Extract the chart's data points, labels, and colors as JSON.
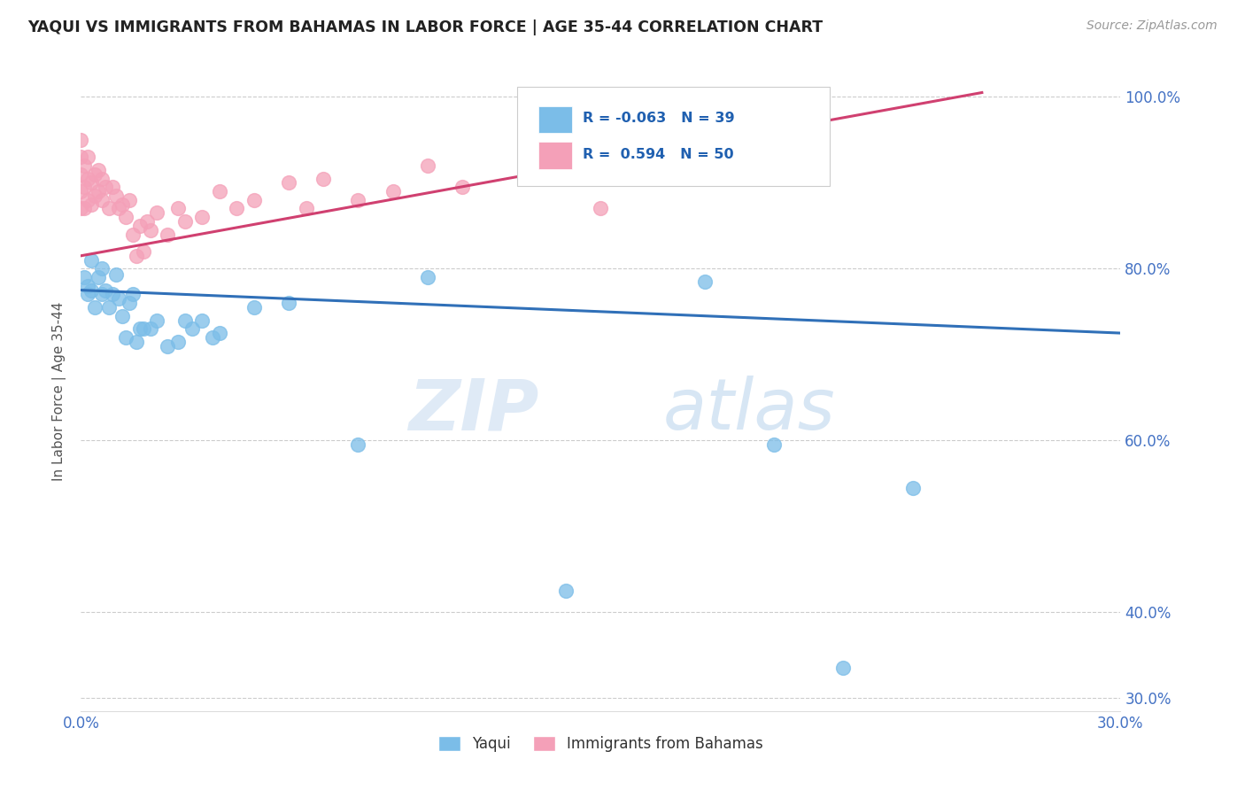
{
  "title": "YAQUI VS IMMIGRANTS FROM BAHAMAS IN LABOR FORCE | AGE 35-44 CORRELATION CHART",
  "source_text": "Source: ZipAtlas.com",
  "ylabel": "In Labor Force | Age 35-44",
  "xlim": [
    0.0,
    0.3
  ],
  "ylim": [
    0.285,
    1.03
  ],
  "ytick_labels": [
    "30.0%",
    "40.0%",
    "60.0%",
    "80.0%",
    "100.0%"
  ],
  "ytick_values": [
    0.3,
    0.4,
    0.6,
    0.8,
    1.0
  ],
  "xtick_labels": [
    "0.0%",
    "",
    "",
    "30.0%"
  ],
  "xtick_values": [
    0.0,
    0.1,
    0.2,
    0.3
  ],
  "blue_R": -0.063,
  "blue_N": 39,
  "pink_R": 0.594,
  "pink_N": 50,
  "blue_color": "#7bbde8",
  "pink_color": "#f4a0b8",
  "trend_blue_color": "#3070b8",
  "trend_pink_color": "#d04070",
  "legend_blue_label": "Yaqui",
  "legend_pink_label": "Immigrants from Bahamas",
  "watermark_zip": "ZIP",
  "watermark_atlas": "atlas",
  "background_color": "#ffffff",
  "grid_color": "#cccccc",
  "blue_x": [
    0.001,
    0.002,
    0.002,
    0.003,
    0.003,
    0.004,
    0.005,
    0.006,
    0.006,
    0.007,
    0.008,
    0.009,
    0.01,
    0.011,
    0.012,
    0.013,
    0.014,
    0.015,
    0.016,
    0.017,
    0.018,
    0.02,
    0.022,
    0.025,
    0.028,
    0.03,
    0.032,
    0.035,
    0.038,
    0.04,
    0.05,
    0.06,
    0.08,
    0.1,
    0.14,
    0.18,
    0.2,
    0.22,
    0.24
  ],
  "blue_y": [
    0.79,
    0.78,
    0.77,
    0.81,
    0.775,
    0.755,
    0.79,
    0.8,
    0.77,
    0.775,
    0.755,
    0.77,
    0.793,
    0.765,
    0.745,
    0.72,
    0.76,
    0.77,
    0.715,
    0.73,
    0.73,
    0.73,
    0.74,
    0.71,
    0.715,
    0.74,
    0.73,
    0.74,
    0.72,
    0.725,
    0.755,
    0.76,
    0.595,
    0.79,
    0.425,
    0.785,
    0.595,
    0.335,
    0.545
  ],
  "pink_x": [
    0.0,
    0.0,
    0.0,
    0.0,
    0.0,
    0.001,
    0.001,
    0.001,
    0.002,
    0.002,
    0.002,
    0.003,
    0.003,
    0.004,
    0.004,
    0.005,
    0.005,
    0.006,
    0.006,
    0.007,
    0.008,
    0.009,
    0.01,
    0.011,
    0.012,
    0.013,
    0.014,
    0.015,
    0.016,
    0.017,
    0.018,
    0.019,
    0.02,
    0.022,
    0.025,
    0.028,
    0.03,
    0.035,
    0.04,
    0.045,
    0.05,
    0.06,
    0.065,
    0.07,
    0.08,
    0.09,
    0.1,
    0.11,
    0.13,
    0.15
  ],
  "pink_y": [
    0.87,
    0.89,
    0.91,
    0.93,
    0.95,
    0.87,
    0.895,
    0.92,
    0.88,
    0.905,
    0.93,
    0.875,
    0.9,
    0.885,
    0.91,
    0.89,
    0.915,
    0.88,
    0.905,
    0.895,
    0.87,
    0.895,
    0.885,
    0.87,
    0.875,
    0.86,
    0.88,
    0.84,
    0.815,
    0.85,
    0.82,
    0.855,
    0.845,
    0.865,
    0.84,
    0.87,
    0.855,
    0.86,
    0.89,
    0.87,
    0.88,
    0.9,
    0.87,
    0.905,
    0.88,
    0.89,
    0.92,
    0.895,
    0.91,
    0.87
  ],
  "blue_trend_x0": 0.0,
  "blue_trend_x1": 0.3,
  "blue_trend_y0": 0.775,
  "blue_trend_y1": 0.725,
  "pink_trend_x0": 0.0,
  "pink_trend_x1": 0.26,
  "pink_trend_y0": 0.815,
  "pink_trend_y1": 1.005
}
